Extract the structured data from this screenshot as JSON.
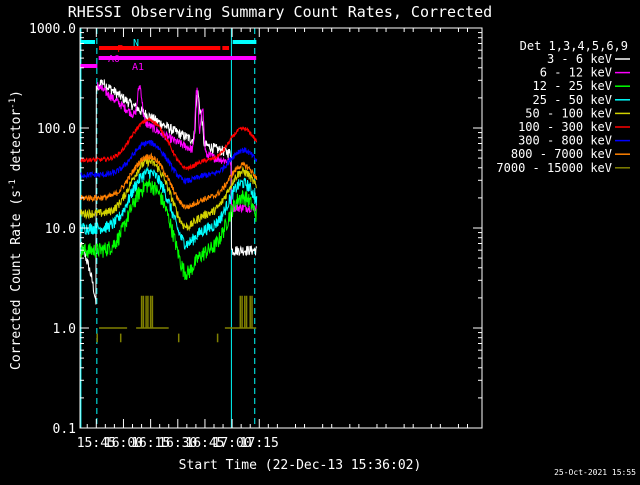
{
  "chart_data": {
    "type": "line",
    "title": "RHESSI Observing Summary Count Rates, Corrected",
    "xlabel": "Start Time (22-Dec-13 15:36:02)",
    "ylabel_main": "Corrected Count Rate (s",
    "ylabel_sup1": "-1",
    "ylabel_mid": " detector",
    "ylabel_sup2": "-1",
    "ylabel_end": ")",
    "footer": "25-Oct-2021 15:55",
    "y_scale": "log",
    "ylim": [
      0.1,
      1000.0
    ],
    "xlim_min": [
      936,
      1158
    ],
    "y_ticks": [
      {
        "value": 1000.0,
        "label": "1000.0"
      },
      {
        "value": 100.0,
        "label": "100.0"
      },
      {
        "value": 10.0,
        "label": "10.0"
      },
      {
        "value": 1.0,
        "label": "1.0"
      },
      {
        "value": 0.1,
        "label": "0.1"
      }
    ],
    "x_ticks": [
      {
        "value": 945,
        "label": "15:45"
      },
      {
        "value": 960,
        "label": "16:00"
      },
      {
        "value": 975,
        "label": "16:15"
      },
      {
        "value": 990,
        "label": "16:30"
      },
      {
        "value": 1005,
        "label": "16:45"
      },
      {
        "value": 1020,
        "label": "17:00"
      },
      {
        "value": 1035,
        "label": "17:15"
      }
    ],
    "legend_title": "Det 1,3,4,5,6,9",
    "legend_position": "right",
    "series": [
      {
        "name": "3 - 6 keV",
        "color": "#ffffff"
      },
      {
        "name": "6 - 12 keV",
        "color": "#ff00ff"
      },
      {
        "name": "12 - 25 keV",
        "color": "#00ff00"
      },
      {
        "name": "25 - 50 keV",
        "color": "#00ffff"
      },
      {
        "name": "50 - 100 keV",
        "color": "#d2d200"
      },
      {
        "name": "100 - 300 keV",
        "color": "#ff0000"
      },
      {
        "name": "300 - 800 keV",
        "color": "#0000ff"
      },
      {
        "name": "800 - 7000 keV",
        "color": "#ff8000"
      },
      {
        "name": "7000 - 15000 keV",
        "color": "#808000"
      }
    ],
    "eclipse_markers": [
      {
        "label": "N",
        "color": "#00ffff",
        "ranges": [
          [
            936.5,
            944.3
          ],
          [
            1020.3,
            1033.4
          ]
        ]
      },
      {
        "label": "F",
        "color": "#ff0000",
        "ranges": [
          [
            946.5,
            1013.5
          ],
          [
            1014.6,
            1018.3
          ]
        ]
      },
      {
        "label": "A0",
        "color": "#ff00ff",
        "ranges": [
          [
            946.3,
            1033.3
          ]
        ]
      },
      {
        "label": "A1",
        "color": "#ff00ff",
        "ranges": [
          [
            936.2,
            945.6
          ]
        ]
      }
    ],
    "night_boundaries_solid": [
      936.5,
      1019.6
    ],
    "night_boundaries_dashed": [
      945.3,
      1032.5
    ]
  }
}
